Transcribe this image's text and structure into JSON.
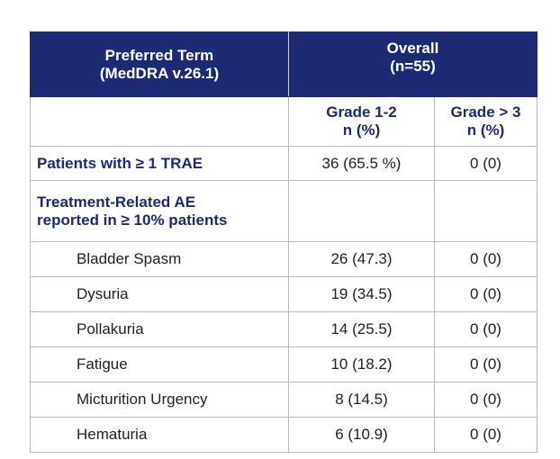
{
  "table": {
    "header": {
      "term": [
        "Preferred Term",
        "(MedDRA v.26.1)"
      ],
      "overall": [
        "Overall",
        "(n=55)"
      ]
    },
    "subheader": {
      "grade12": [
        "Grade 1-2",
        "n (%)"
      ],
      "grade3": [
        "Grade > 3",
        "n (%)"
      ]
    },
    "summary": {
      "label": "Patients with ≥ 1 TRAE",
      "grade12": "36 (65.5 %)",
      "grade3": "0 (0)"
    },
    "section": [
      "Treatment-Related AE",
      "reported in ≥ 10% patients"
    ],
    "rows": [
      [
        "Bladder Spasm",
        "26 (47.3)",
        "0 (0)"
      ],
      [
        "Dysuria",
        "19 (34.5)",
        "0 (0)"
      ],
      [
        "Pollakuria",
        "14 (25.5)",
        "0 (0)"
      ],
      [
        "Fatigue",
        "10 (18.2)",
        "0 (0)"
      ],
      [
        "Micturition Urgency",
        "8 (14.5)",
        "0 (0)"
      ],
      [
        "Hematuria",
        "6 (10.9)",
        "0 (0)"
      ]
    ]
  }
}
